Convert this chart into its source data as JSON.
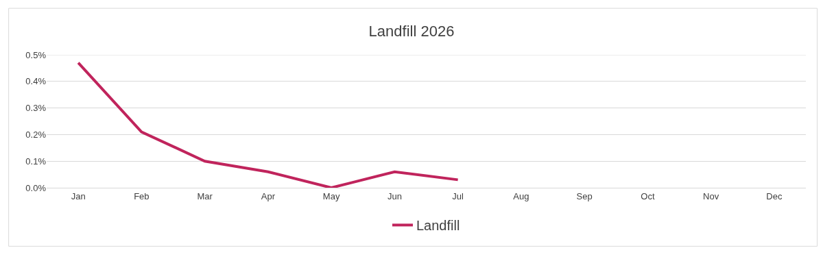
{
  "chart_data": {
    "type": "line",
    "title": "Landfill 2026",
    "categories": [
      "Jan",
      "Feb",
      "Mar",
      "Apr",
      "May",
      "Jun",
      "Jul",
      "Aug",
      "Sep",
      "Oct",
      "Nov",
      "Dec"
    ],
    "series": [
      {
        "name": "Landfill",
        "color": "#c0245c",
        "values": [
          0.47,
          0.21,
          0.1,
          0.06,
          0.0,
          0.06,
          0.03,
          null,
          null,
          null,
          null,
          null
        ]
      }
    ],
    "ylim": [
      0,
      0.5
    ],
    "yticks": [
      {
        "value": 0,
        "label": "0.0%"
      },
      {
        "value": 0.1,
        "label": "0.1%"
      },
      {
        "value": 0.2,
        "label": "0.2%"
      },
      {
        "value": 0.3,
        "label": "0.3%"
      },
      {
        "value": 0.4,
        "label": "0.4%"
      },
      {
        "value": 0.5,
        "label": "0.5%"
      }
    ],
    "grid": "y",
    "legend": "bottom",
    "marker": "none",
    "line_style": "solid"
  }
}
